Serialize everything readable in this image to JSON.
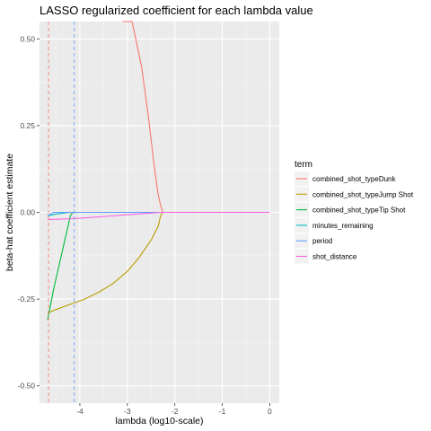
{
  "chart_data": {
    "type": "line",
    "title": "LASSO regularized coefficient for each lambda value",
    "xlabel": "lambda (log10-scale)",
    "ylabel": "beta-hat coefficient estimate",
    "xlim": [
      -4.85,
      0.2
    ],
    "ylim": [
      -0.55,
      0.55
    ],
    "x_ticks": [
      {
        "value": -4,
        "label": "-4"
      },
      {
        "value": -3,
        "label": "-3"
      },
      {
        "value": -2,
        "label": "-2"
      },
      {
        "value": -1,
        "label": "-1"
      },
      {
        "value": 0,
        "label": "0"
      }
    ],
    "y_ticks": [
      {
        "value": -0.5,
        "label": "-0.50"
      },
      {
        "value": -0.25,
        "label": "-0.25"
      },
      {
        "value": 0,
        "label": "0.00"
      },
      {
        "value": 0.25,
        "label": "0.25"
      },
      {
        "value": 0.5,
        "label": "0.50"
      }
    ],
    "grid": true,
    "legend_title": "term",
    "legend_position": "right",
    "series": [
      {
        "name": "combined_shot_typeDunk",
        "color": "#F8766D",
        "x": [
          -3.1,
          -2.9,
          -2.7,
          -2.55,
          -2.45,
          -2.35,
          -2.3,
          -2.25,
          -2.0,
          -1.0,
          0.0
        ],
        "y": [
          0.7,
          0.56,
          0.42,
          0.27,
          0.15,
          0.05,
          0.02,
          0.0,
          0.0,
          0.0,
          0.0
        ]
      },
      {
        "name": "combined_shot_typeJump Shot",
        "color": "#B79F00",
        "x": [
          -4.68,
          -4.5,
          -4.2,
          -3.9,
          -3.6,
          -3.3,
          -3.0,
          -2.75,
          -2.5,
          -2.35,
          -2.3,
          -2.25,
          -2.0,
          -1.0,
          0.0
        ],
        "y": [
          -0.29,
          -0.28,
          -0.265,
          -0.25,
          -0.23,
          -0.205,
          -0.17,
          -0.13,
          -0.08,
          -0.04,
          -0.01,
          0.0,
          0.0,
          0.0,
          0.0
        ]
      },
      {
        "name": "combined_shot_typeTip Shot",
        "color": "#00BA38",
        "x": [
          -4.68,
          -4.55,
          -4.35,
          -4.2,
          -4.15,
          -4.1,
          -4.0,
          -3.0,
          -2.0,
          -1.0,
          0.0
        ],
        "y": [
          -0.31,
          -0.22,
          -0.1,
          -0.01,
          0.0,
          0.0,
          0.0,
          0.0,
          0.0,
          0.0,
          0.0
        ]
      },
      {
        "name": "minutes_remaining",
        "color": "#00BFC4",
        "x": [
          -4.68,
          -4.5,
          -4.35,
          -4.2,
          -4.0,
          -3.0,
          -2.0,
          -1.0,
          0.0
        ],
        "y": [
          -0.01,
          -0.005,
          -0.002,
          0.0,
          0.0,
          0.0,
          0.0,
          0.0,
          0.0
        ]
      },
      {
        "name": "period",
        "color": "#619CFF",
        "x": [
          -4.68,
          -4.55,
          -4.4,
          -4.25,
          -4.0,
          -3.0,
          -2.0,
          -1.0,
          0.0
        ],
        "y": [
          -0.01,
          0.0,
          0.0,
          0.0,
          0.0,
          0.0,
          0.0,
          0.0,
          0.0
        ]
      },
      {
        "name": "shot_distance",
        "color": "#F564E3",
        "x": [
          -4.68,
          -4.3,
          -4.0,
          -3.7,
          -3.4,
          -3.1,
          -2.8,
          -2.5,
          -2.3,
          -2.0,
          -1.0,
          0.0
        ],
        "y": [
          -0.021,
          -0.019,
          -0.017,
          -0.014,
          -0.011,
          -0.008,
          -0.005,
          -0.002,
          0.0,
          0.0,
          0.0,
          0.0
        ]
      }
    ],
    "vlines": [
      {
        "x": -4.66,
        "color": "#F8766D"
      },
      {
        "x": -4.12,
        "color": "#619CFF"
      }
    ]
  }
}
